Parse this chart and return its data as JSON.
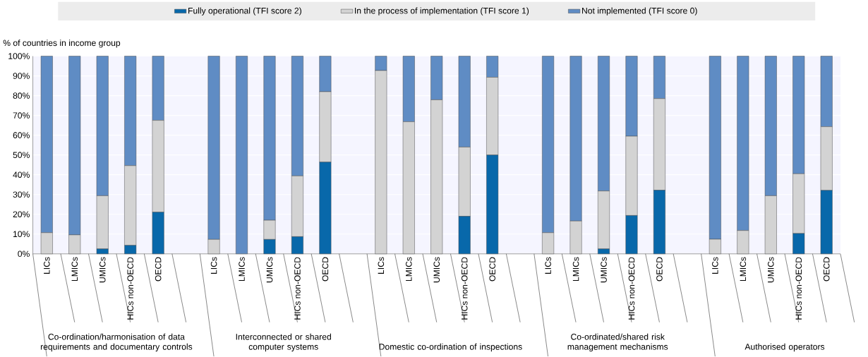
{
  "chart_data": {
    "type": "bar",
    "stacked": true,
    "legend": "top",
    "grid": "y",
    "ylabel": "% of countries in income group",
    "categories": [
      "LICs",
      "LMICs",
      "UMICs",
      "HICs non-OECD",
      "OECD",
      null,
      "LICs",
      "LMICs",
      "UMICs",
      "HICs non-OECD",
      "OECD",
      null,
      "LICs",
      "LMICs",
      "UMICs",
      "HICs non-OECD",
      "OECD",
      null,
      "LICs",
      "LMICs",
      "UMICs",
      "HICs non-OECD",
      "OECD",
      null,
      "LICs",
      "LMICs",
      "UMICs",
      "HICs non-OECD",
      "OECD"
    ],
    "series": [
      {
        "name": "Fully operational (TFI score 2)",
        "color": "#0868aa",
        "values": [
          0,
          0,
          2.5,
          4.3,
          21.1,
          null,
          0,
          0,
          7.3,
          8.7,
          46.4,
          null,
          0,
          0,
          0,
          19,
          50,
          null,
          0,
          0,
          2.5,
          19.4,
          32.2,
          null,
          0,
          0,
          0,
          10.3,
          32.1
        ]
      },
      {
        "name": "In the process of implementation (TFI score 1)",
        "color": "#d3d3d3",
        "values": [
          10.7,
          9.6,
          26.9,
          40.3,
          46.4,
          null,
          7.3,
          0,
          9.7,
          30.7,
          35.6,
          null,
          92.7,
          66.8,
          77.9,
          35,
          39.3,
          null,
          10.7,
          16.6,
          29.3,
          40.1,
          46.3,
          null,
          7.4,
          11.8,
          29.4,
          30.2,
          32.2
        ]
      },
      {
        "name": "Not implemented (TFI score 0)",
        "color": "#5f8cc4",
        "values": [
          89.3,
          90.4,
          70.6,
          55.4,
          32.5,
          null,
          92.7,
          100,
          83,
          60.6,
          18,
          null,
          7.3,
          33.2,
          22.1,
          46,
          10.7,
          null,
          89.3,
          83.4,
          68.2,
          40.5,
          21.5,
          null,
          92.6,
          88.2,
          70.6,
          59.5,
          35.7
        ]
      }
    ],
    "ylim": [
      0,
      100
    ],
    "yticks": [
      {
        "value": 0,
        "label": "0%"
      },
      {
        "value": 10,
        "label": "10%"
      },
      {
        "value": 20,
        "label": "20%"
      },
      {
        "value": 30,
        "label": "30%"
      },
      {
        "value": 40,
        "label": "40%"
      },
      {
        "value": 50,
        "label": "50%"
      },
      {
        "value": 60,
        "label": "60%"
      },
      {
        "value": 70,
        "label": "70%"
      },
      {
        "value": 80,
        "label": "80%"
      },
      {
        "value": 90,
        "label": "90%"
      },
      {
        "value": 100,
        "label": "100%"
      }
    ],
    "annotations": [
      "Co-ordination/harmonisation of data requirements and documentary controls",
      "Interconnected or shared computer systems",
      "Domestic co-ordination of inspections",
      "Co-ordinated/shared risk management mechanisms",
      "Authorised operators"
    ]
  }
}
